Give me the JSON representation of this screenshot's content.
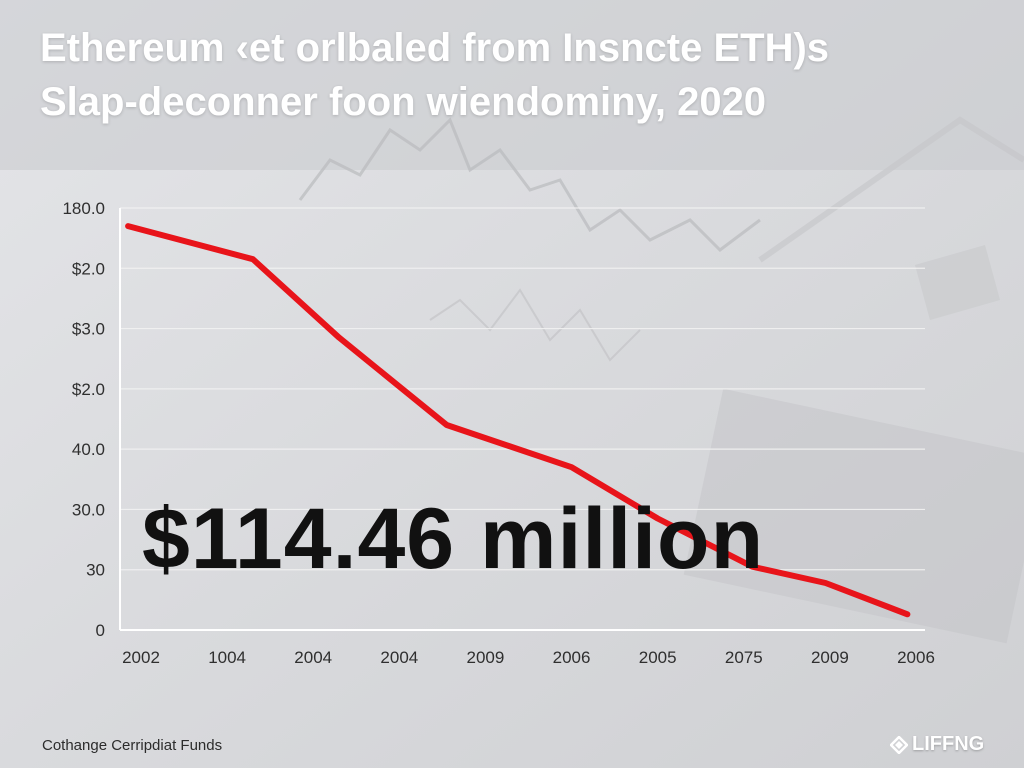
{
  "title": "Ethereum ‹et orlbaled from Insncte ETH)s",
  "subtitle": "Slap-deconner foon wiendominy, 2020",
  "highlight": "$114.46 million",
  "footer": {
    "left_text": "Cothange Cerripdiat Funds",
    "logo_text": "LIFFNG"
  },
  "colors": {
    "line": "#e8141a",
    "background": "#dcdde0",
    "grid": "#f2f2f2"
  },
  "chart_data": {
    "type": "line",
    "title": "Ethereum ‹et orlbaled from Insncte ETH)s",
    "subtitle": "Slap-deconner foon wiendominy, 2020",
    "xlabel": "",
    "ylabel": "",
    "x_tick_labels": [
      "2002",
      "1004",
      "2004",
      "2004",
      "2009",
      "2006",
      "2005",
      "2075",
      "2009",
      "2006"
    ],
    "y_tick_labels": [
      "180.0",
      "$2.0",
      "$3.0",
      "$2.0",
      "40.0",
      "30.0",
      "30",
      "0"
    ],
    "y_tick_values": [
      7,
      6,
      5,
      4,
      3,
      2,
      1,
      0
    ],
    "ylim": [
      0,
      7
    ],
    "xlim": [
      0,
      9
    ],
    "grid": true,
    "series": [
      {
        "color": "#e8141a",
        "points": [
          {
            "x": -0.15,
            "y": 6.7
          },
          {
            "x": 1.3,
            "y": 6.15
          },
          {
            "x": 2.3,
            "y": 4.85
          },
          {
            "x": 3.55,
            "y": 3.4
          },
          {
            "x": 5.0,
            "y": 2.7
          },
          {
            "x": 6.0,
            "y": 1.85
          },
          {
            "x": 7.1,
            "y": 1.05
          },
          {
            "x": 7.95,
            "y": 0.78
          },
          {
            "x": 8.9,
            "y": 0.26
          }
        ]
      }
    ]
  }
}
